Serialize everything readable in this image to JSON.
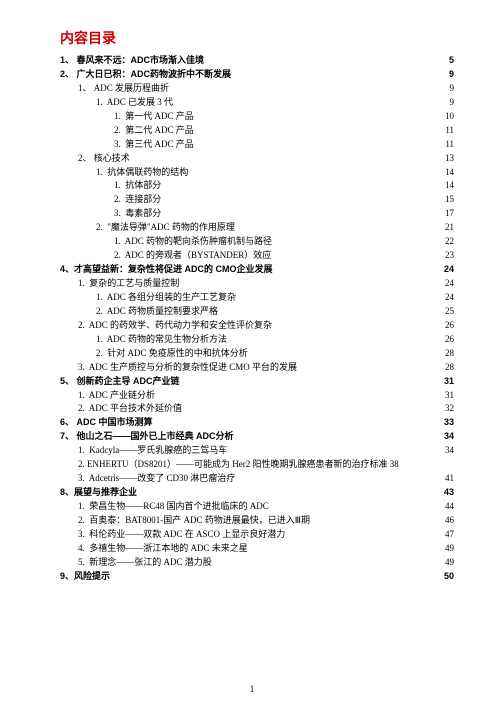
{
  "title": "内容目录",
  "footer_page": "1",
  "entries": [
    {
      "level": "h1",
      "text": "1、 春风来不远：ADC市场渐入佳境",
      "page": "5"
    },
    {
      "level": "h1",
      "text": "2、 广大日已积：ADC药物波折中不断发展",
      "page": "9"
    },
    {
      "level": "h2",
      "text": "1、 ADC 发展历程曲折",
      "page": "9"
    },
    {
      "level": "h3",
      "text": "1.  ADC 已发展 3 代",
      "page": "9"
    },
    {
      "level": "h4",
      "text": "1.  第一代 ADC 产品",
      "page": "10"
    },
    {
      "level": "h4",
      "text": "2.  第二代 ADC 产品",
      "page": "11"
    },
    {
      "level": "h4",
      "text": "3.  第三代 ADC 产品",
      "page": "11"
    },
    {
      "level": "h2",
      "text": "2、 核心技术",
      "page": "13"
    },
    {
      "level": "h3",
      "text": "1.  抗体偶联药物的结构",
      "page": "14"
    },
    {
      "level": "h4",
      "text": "1.  抗体部分",
      "page": "14"
    },
    {
      "level": "h4",
      "text": "2.  连接部分",
      "page": "15"
    },
    {
      "level": "h4",
      "text": "3.  毒素部分",
      "page": "17"
    },
    {
      "level": "h3",
      "text": "2.  \"魔法导弹\"ADC 药物的作用原理",
      "page": "21"
    },
    {
      "level": "h4",
      "text": "1.  ADC 药物的靶向杀伤肿瘤机制与路径",
      "page": "22"
    },
    {
      "level": "h4",
      "text": "2.  ADC 的旁观者（BYSTANDER）效应",
      "page": "23"
    },
    {
      "level": "h1",
      "text": "4、才高望益新：复杂性将促进 ADC的 CMO企业发展",
      "page": "24"
    },
    {
      "level": "h2",
      "text": "1.  复杂的工艺与质量控制",
      "page": "24"
    },
    {
      "level": "h3",
      "text": "1.  ADC 各组分组装的生产工艺复杂",
      "page": "24"
    },
    {
      "level": "h3",
      "text": "2.  ADC 药物质量控制要求严格",
      "page": "25"
    },
    {
      "level": "h2",
      "text": "2.  ADC 的药效学、药代动力学和安全性评价复杂",
      "page": "26"
    },
    {
      "level": "h3",
      "text": "1.  ADC 药物的常见生物分析方法",
      "page": "26"
    },
    {
      "level": "h3",
      "text": "2.  针对 ADC 免疫原性的中和抗体分析",
      "page": "28"
    },
    {
      "level": "h2",
      "text": "3.  ADC 生产质控与分析的复杂性促进 CMO 平台的发展",
      "page": "28"
    },
    {
      "level": "h1",
      "text": "5、 创新药企主导 ADC产业链",
      "page": "31"
    },
    {
      "level": "h2",
      "text": "1.  ADC 产业链分析",
      "page": "31"
    },
    {
      "level": "h2",
      "text": "2.  ADC 平台技术外延价值",
      "page": "32"
    },
    {
      "level": "h1",
      "text": "6、 ADC 中国市场测算",
      "page": "33"
    },
    {
      "level": "h1",
      "text": "7、 他山之石——国外已上市经典 ADC分析",
      "page": "34"
    },
    {
      "level": "h2",
      "text": "1.  Kadcyla——罗氏乳腺癌的三驾马车",
      "page": "34"
    },
    {
      "level": "wrap",
      "text": "2.  ENHERTU（DS8201）——可能成为 Her2 阳性晚期乳腺癌患者新的治疗标准 38",
      "page": ""
    },
    {
      "level": "h2",
      "text": "3.  Adcetris——改变了 CD30 淋巴瘤治疗",
      "page": "41"
    },
    {
      "level": "h1",
      "text": "8、展望与推荐企业",
      "page": "43"
    },
    {
      "level": "h2",
      "text": "1.  荣昌生物——RC48 国内首个进批临床的 ADC",
      "page": "44"
    },
    {
      "level": "h2",
      "text": "2.  百奥泰：BAT8001-国产 ADC 药物进展最快，已进入Ⅲ期",
      "page": "46"
    },
    {
      "level": "h2",
      "text": "3.  科伦药业——双款 ADC 在 ASCO 上显示良好潜力",
      "page": "47"
    },
    {
      "level": "h2",
      "text": "4.  多禧生物——浙江本地的 ADC 未来之星",
      "page": "49"
    },
    {
      "level": "h2",
      "text": "5.  新理念——张江的 ADC 潜力股",
      "page": "49"
    },
    {
      "level": "h1",
      "text": "9、风险提示",
      "page": "50"
    }
  ]
}
